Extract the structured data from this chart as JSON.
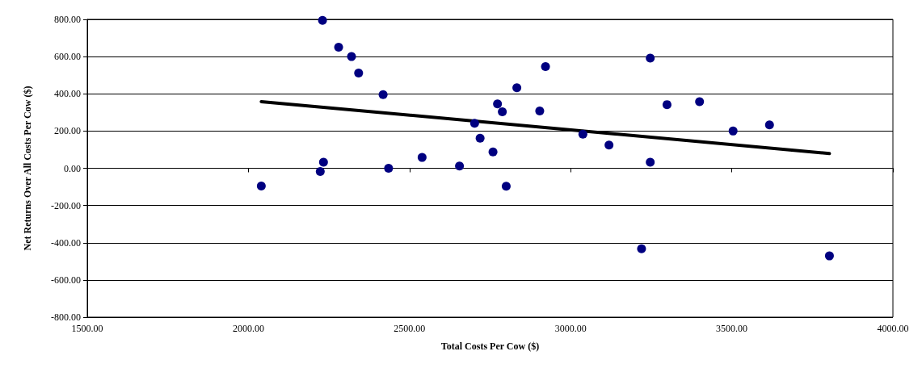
{
  "chart_data": {
    "type": "scatter",
    "xlabel": "Total Costs Per Cow ($)",
    "ylabel": "Net Returns Over All Costs Per Cow ($)",
    "xlim": [
      1500,
      4000
    ],
    "ylim": [
      -800,
      800
    ],
    "xticks": [
      {
        "value": 1500,
        "label": "1500.00"
      },
      {
        "value": 2000,
        "label": "2000.00"
      },
      {
        "value": 2500,
        "label": "2500.00"
      },
      {
        "value": 3000,
        "label": "3000.00"
      },
      {
        "value": 3500,
        "label": "3500.00"
      },
      {
        "value": 4000,
        "label": "4000.00"
      }
    ],
    "yticks": [
      {
        "value": -800,
        "label": "-800.00"
      },
      {
        "value": -600,
        "label": "-600.00"
      },
      {
        "value": -400,
        "label": "-400.00"
      },
      {
        "value": -200,
        "label": "-200.00"
      },
      {
        "value": 0,
        "label": "0.00"
      },
      {
        "value": 200,
        "label": "200.00"
      },
      {
        "value": 400,
        "label": "400.00"
      },
      {
        "value": 600,
        "label": "600.00"
      },
      {
        "value": 800,
        "label": "800.00"
      }
    ],
    "grid": "y",
    "marker": "circle",
    "series": [
      {
        "color": "#000080",
        "x": [
          2040,
          2230,
          2280,
          2320,
          2342,
          2223,
          2233,
          2418,
          2435,
          2539,
          2655,
          2702,
          2719,
          2759,
          2773,
          2788,
          2800,
          2833,
          2904,
          2922,
          3038,
          3119,
          3220,
          3247,
          3247,
          3299,
          3400,
          3504,
          3617,
          3803
        ],
        "values": [
          -95,
          795,
          650,
          600,
          512,
          -17,
          33,
          396,
          0,
          58,
          12,
          242,
          162,
          88,
          346,
          304,
          -96,
          433,
          308,
          546,
          183,
          125,
          -433,
          592,
          33,
          342,
          358,
          200,
          233,
          -471
        ]
      },
      {
        "type": "line",
        "color": "#000000",
        "marker": "none",
        "line_style": "solid",
        "x": [
          2040,
          3803
        ],
        "values": [
          358,
          79
        ]
      }
    ]
  }
}
